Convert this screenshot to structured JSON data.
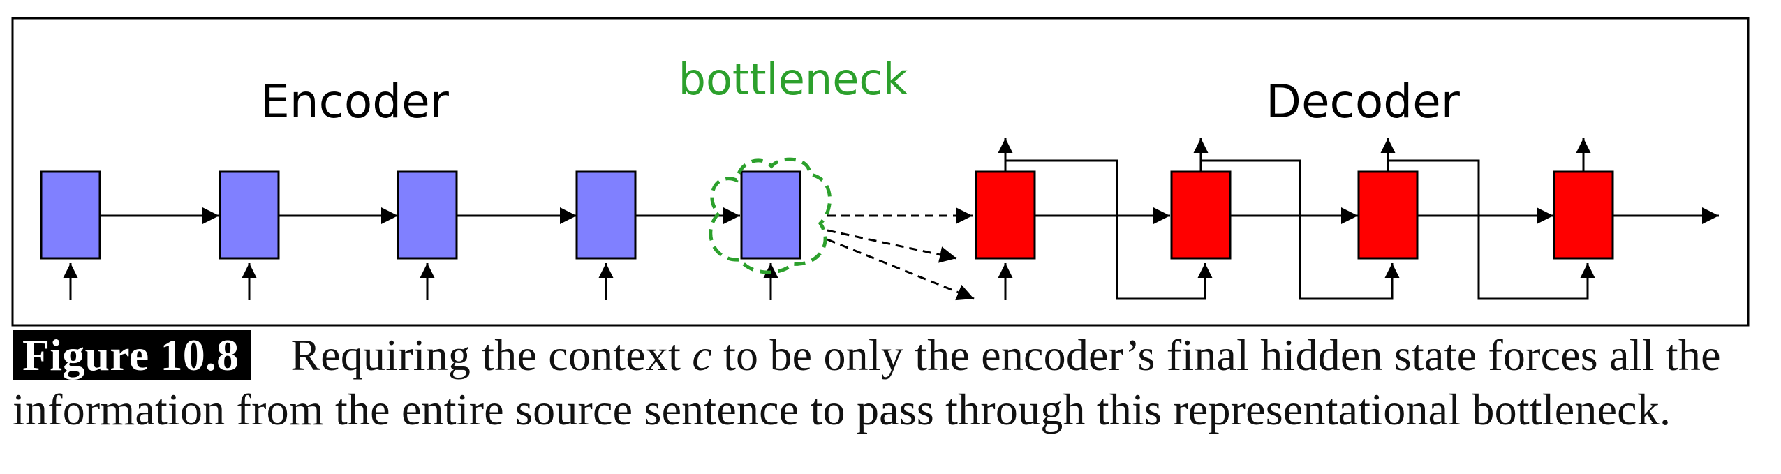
{
  "diagram": {
    "encoder_label": "Encoder",
    "decoder_label": "Decoder",
    "bottleneck_label": "bottleneck",
    "colors": {
      "encoder_cell": "#8080ff",
      "decoder_cell": "#ff0000",
      "bottleneck": "#2ca02c",
      "stroke": "#000000"
    }
  },
  "caption": {
    "figure_label": "Figure 10.8",
    "line1_before": "Requiring the context ",
    "line1_var": "c",
    "line1_after": " to be only the encoder’s final hidden state forces all the",
    "line2": "information from the entire source sentence to pass through this representational bottleneck."
  }
}
